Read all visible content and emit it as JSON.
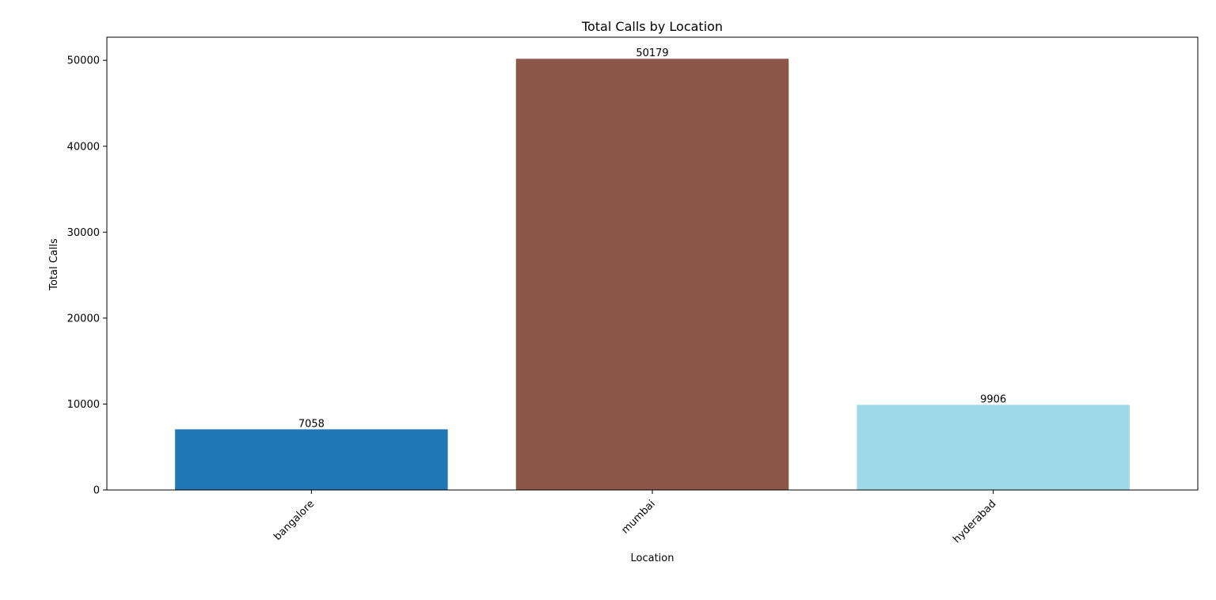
{
  "chart_data": {
    "type": "bar",
    "title": "Total Calls by Location",
    "xlabel": "Location",
    "ylabel": "Total Calls",
    "categories": [
      "bangalore",
      "mumbai",
      "hyderabad"
    ],
    "values": [
      7058,
      50179,
      9906
    ],
    "value_labels": [
      "7058",
      "50179",
      "9906"
    ],
    "colors": [
      "#1f77b4",
      "#8c564b",
      "#9edae5"
    ],
    "ylim": [
      0,
      52688
    ],
    "yticks": [
      0,
      10000,
      20000,
      30000,
      40000,
      50000
    ],
    "ytick_labels": [
      "0",
      "10000",
      "20000",
      "30000",
      "40000",
      "50000"
    ],
    "grid": false,
    "legend": "none",
    "xtick_rotation_deg": 45
  }
}
